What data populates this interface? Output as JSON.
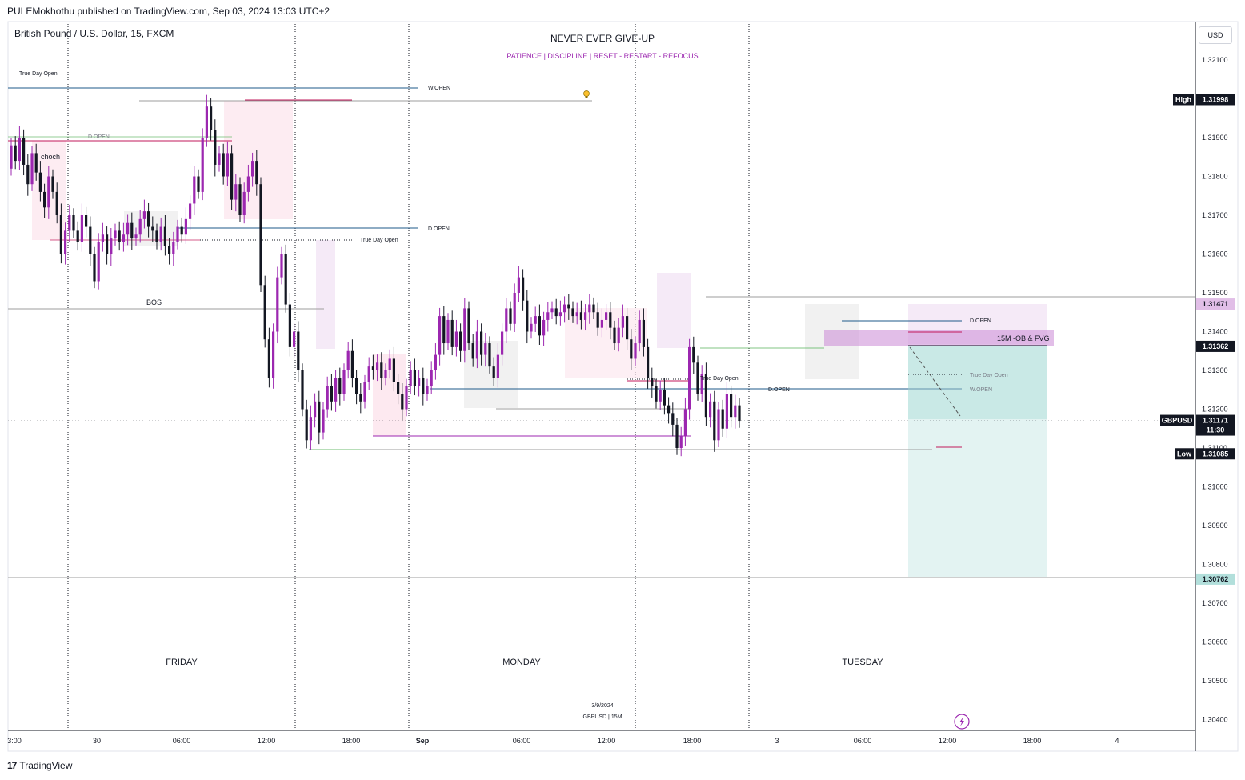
{
  "header": {
    "published_by": "PULEMokhothu published on TradingView.com, Sep 03, 2024 13:03 UTC+2",
    "symbol_title": "British Pound / U.S. Dollar, 15, FXCM"
  },
  "footer": {
    "logo": "17",
    "brand": "TradingView"
  },
  "currency_button": "USD",
  "motto": {
    "title": "NEVER EVER GIVE-UP",
    "subtitle": "PATIENCE   |   DISCIPLINE   |   RESET - RESTART - REFOCUS"
  },
  "days": [
    "FRIDAY",
    "MONDAY",
    "TUESDAY"
  ],
  "stamp": {
    "date": "3/9/2024",
    "symbol": "GBPUSD | 15M"
  },
  "colors": {
    "bull": "#9c27b0",
    "bear": "#131722",
    "red_line": "#c2185b",
    "blue_line": "#1e5a8a",
    "green_line": "#4caf50",
    "teal_zone": "#26a69a",
    "purple_zone": "#ce93d8",
    "text_grey": "#787b86"
  },
  "chart_data": {
    "type": "candlestick",
    "symbol": "GBPUSD",
    "timeframe": "15",
    "broker": "FXCM",
    "x_ticks": [
      "3:00",
      "30",
      "06:00",
      "12:00",
      "18:00",
      "Sep",
      "06:00",
      "12:00",
      "18:00",
      "3",
      "06:00",
      "12:00",
      "18:00",
      "4"
    ],
    "y_ticks": [
      "1.32100",
      "1.31900",
      "1.31800",
      "1.31700",
      "1.31600",
      "1.31500",
      "1.31400",
      "1.31300",
      "1.31200",
      "1.31100",
      "1.31000",
      "1.30900",
      "1.30800",
      "1.30700",
      "1.30600",
      "1.30500",
      "1.30400"
    ],
    "ylim": [
      1.3035,
      1.322
    ],
    "high": {
      "label": "High",
      "value": 1.31998,
      "text": "1.31998"
    },
    "low": {
      "label": "Low",
      "value": 1.31085,
      "text": "1.31085"
    },
    "current": {
      "label": "GBPUSD",
      "value": 1.31171,
      "text": "1.31171",
      "countdown": "11:30"
    },
    "price_labels": [
      {
        "value": 1.31471,
        "text": "1.31471"
      },
      {
        "value": 1.31362,
        "text": "1.31362"
      },
      {
        "value": 1.30762,
        "text": "1.30762"
      }
    ],
    "annotations": {
      "true_day_open": "True Day Open",
      "w_open": "W.OPEN",
      "d_open": "D.OPEN",
      "bos": "BOS",
      "choch": "choch",
      "ob_fvg": "15M -OB & FVG"
    },
    "candles_close": [
      1.3188,
      1.3184,
      1.319,
      1.3183,
      1.3178,
      1.3186,
      1.3181,
      1.3176,
      1.3172,
      1.318,
      1.3176,
      1.317,
      1.316,
      1.3166,
      1.317,
      1.3166,
      1.3163,
      1.317,
      1.3167,
      1.316,
      1.3153,
      1.3163,
      1.3165,
      1.316,
      1.3164,
      1.3166,
      1.3163,
      1.3165,
      1.3168,
      1.3164,
      1.3165,
      1.3169,
      1.3171,
      1.3167,
      1.3166,
      1.3163,
      1.3167,
      1.3162,
      1.316,
      1.3163,
      1.3167,
      1.3165,
      1.3169,
      1.3173,
      1.318,
      1.3176,
      1.319,
      1.3198,
      1.3192,
      1.3183,
      1.3186,
      1.318,
      1.3186,
      1.3174,
      1.3178,
      1.317,
      1.3176,
      1.318,
      1.3184,
      1.3178,
      1.3152,
      1.3138,
      1.3128,
      1.314,
      1.3154,
      1.316,
      1.3147,
      1.3136,
      1.314,
      1.313,
      1.312,
      1.3112,
      1.3118,
      1.3122,
      1.3114,
      1.312,
      1.3126,
      1.3122,
      1.3128,
      1.3124,
      1.313,
      1.3135,
      1.3128,
      1.3124,
      1.3122,
      1.3127,
      1.3131,
      1.313,
      1.3132,
      1.3128,
      1.313,
      1.3133,
      1.3127,
      1.3124,
      1.312,
      1.3126,
      1.313,
      1.3126,
      1.3128,
      1.3124,
      1.3126,
      1.313,
      1.3134,
      1.3144,
      1.3137,
      1.3143,
      1.3136,
      1.314,
      1.3135,
      1.3146,
      1.3137,
      1.3133,
      1.314,
      1.3134,
      1.3137,
      1.3131,
      1.3128,
      1.3134,
      1.314,
      1.3146,
      1.3142,
      1.315,
      1.3154,
      1.3148,
      1.314,
      1.3142,
      1.3144,
      1.3139,
      1.3143,
      1.3145,
      1.3146,
      1.3144,
      1.3145,
      1.3147,
      1.3146,
      1.3144,
      1.3145,
      1.3143,
      1.3145,
      1.3147,
      1.3145,
      1.3141,
      1.3143,
      1.3145,
      1.3141,
      1.3137,
      1.3141,
      1.3144,
      1.3138,
      1.3133,
      1.3137,
      1.3143,
      1.3136,
      1.3128,
      1.3126,
      1.3122,
      1.3125,
      1.3121,
      1.3119,
      1.3116,
      1.311,
      1.3113,
      1.312,
      1.3136,
      1.3132,
      1.3124,
      1.3129,
      1.3118,
      1.3122,
      1.3112,
      1.312,
      1.3115,
      1.3124,
      1.3118,
      1.3121,
      1.3117
    ]
  }
}
